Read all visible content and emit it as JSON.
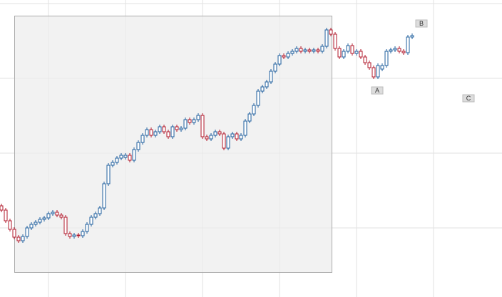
{
  "chart_data": {
    "type": "candlestick",
    "up_color": "#1f5f9e",
    "down_color": "#b2182b",
    "ylim": [
      0,
      417
    ],
    "open": [
      128,
      122,
      107,
      95,
      84,
      79,
      85,
      97,
      102,
      105,
      109,
      111,
      117,
      119,
      115,
      112,
      89,
      85,
      87,
      86,
      92,
      102,
      112,
      117,
      125,
      159,
      185,
      189,
      195,
      196,
      199,
      192,
      207,
      217,
      227,
      235,
      227,
      232,
      239,
      232,
      225,
      239,
      235,
      237,
      249,
      245,
      249,
      255,
      225,
      222,
      227,
      232,
      229,
      209,
      225,
      229,
      222,
      227,
      247,
      257,
      269,
      289,
      295,
      302,
      317,
      327,
      339,
      337,
      342,
      345,
      349,
      345,
      347,
      345,
      347,
      345,
      352,
      375,
      369,
      349,
      337,
      345,
      353,
      342,
      345,
      337,
      329,
      322,
      309,
      320,
      325,
      345,
      347,
      349,
      345,
      343,
      365
    ],
    "high": [
      131,
      125,
      110,
      98,
      87,
      88,
      100,
      105,
      108,
      112,
      114,
      120,
      122,
      122,
      118,
      115,
      92,
      90,
      90,
      95,
      105,
      115,
      120,
      128,
      162,
      188,
      192,
      198,
      202,
      202,
      202,
      210,
      220,
      230,
      238,
      238,
      235,
      242,
      242,
      235,
      242,
      242,
      240,
      252,
      252,
      252,
      258,
      258,
      228,
      230,
      235,
      235,
      232,
      228,
      232,
      232,
      230,
      250,
      260,
      272,
      292,
      298,
      305,
      320,
      330,
      342,
      342,
      345,
      348,
      352,
      352,
      350,
      350,
      350,
      350,
      355,
      378,
      378,
      372,
      352,
      348,
      356,
      356,
      348,
      348,
      340,
      332,
      325,
      328,
      328,
      348,
      350,
      352,
      352,
      348,
      368,
      370
    ],
    "low": [
      119,
      104,
      92,
      81,
      76,
      76,
      82,
      94,
      99,
      102,
      106,
      108,
      114,
      112,
      109,
      86,
      82,
      82,
      83,
      83,
      89,
      99,
      109,
      114,
      122,
      156,
      182,
      186,
      192,
      193,
      189,
      189,
      204,
      214,
      224,
      224,
      224,
      229,
      229,
      222,
      222,
      232,
      232,
      234,
      242,
      242,
      246,
      222,
      219,
      219,
      224,
      226,
      206,
      206,
      222,
      219,
      219,
      224,
      244,
      254,
      266,
      286,
      292,
      299,
      314,
      324,
      334,
      334,
      339,
      342,
      342,
      342,
      342,
      342,
      342,
      342,
      349,
      366,
      346,
      334,
      334,
      342,
      339,
      339,
      334,
      326,
      319,
      306,
      306,
      317,
      322,
      342,
      344,
      342,
      340,
      340,
      362
    ],
    "close": [
      122,
      107,
      95,
      84,
      79,
      85,
      97,
      102,
      105,
      109,
      111,
      117,
      119,
      115,
      112,
      89,
      85,
      87,
      86,
      92,
      102,
      112,
      117,
      125,
      159,
      185,
      189,
      195,
      199,
      199,
      192,
      207,
      217,
      227,
      235,
      227,
      232,
      239,
      232,
      225,
      239,
      235,
      237,
      249,
      245,
      249,
      255,
      225,
      222,
      227,
      232,
      229,
      209,
      225,
      229,
      222,
      227,
      247,
      257,
      269,
      289,
      295,
      302,
      317,
      327,
      339,
      337,
      342,
      345,
      349,
      345,
      347,
      345,
      347,
      345,
      352,
      375,
      369,
      349,
      337,
      345,
      353,
      342,
      345,
      337,
      329,
      322,
      309,
      325,
      325,
      345,
      347,
      349,
      345,
      343,
      365,
      367
    ],
    "annotations": [
      "A",
      "B",
      "C"
    ]
  }
}
